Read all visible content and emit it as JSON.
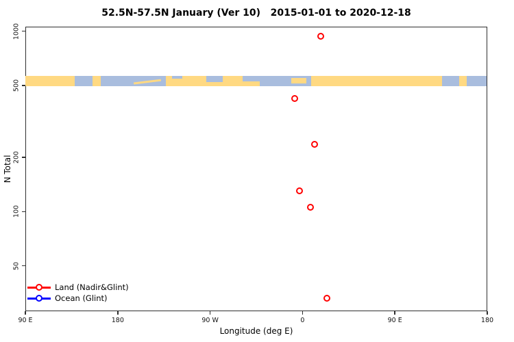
{
  "title": "52.5N-57.5N January (Ver 10)   2015-01-01 to 2020-12-18",
  "chart_data": {
    "type": "scatter",
    "title": "52.5N-57.5N January (Ver 10)   2015-01-01 to 2020-12-18",
    "xlabel": "Longitude (deg E)",
    "ylabel": "N Total",
    "x_axis": {
      "note": "longitude axis wraps 450 degrees: 90E -> 180 -> 90W -> 0 -> 90E -> 180",
      "range": [
        90,
        540
      ],
      "ticks": [
        {
          "value": 90,
          "label": "90 E"
        },
        {
          "value": 180,
          "label": "180"
        },
        {
          "value": 270,
          "label": "90 W"
        },
        {
          "value": 360,
          "label": "0"
        },
        {
          "value": 450,
          "label": "90 E"
        },
        {
          "value": 540,
          "label": "180"
        }
      ]
    },
    "y_axis": {
      "scale": "log",
      "range": [
        28,
        1060
      ],
      "grid": false,
      "ticks": [
        {
          "value": 1000,
          "label": "1000"
        },
        {
          "value": 500,
          "label": "500"
        },
        {
          "value": 200,
          "label": "200"
        },
        {
          "value": 100,
          "label": "100"
        },
        {
          "value": 50,
          "label": "50"
        }
      ]
    },
    "series": [
      {
        "name": "Land (Nadir&Glint)",
        "color": "#FF0000",
        "marker": "open-circle",
        "points": [
          {
            "x": 377.8,
            "lon_label": "18 E",
            "n": 930
          },
          {
            "x": 353.0,
            "lon_label": "7 W",
            "n": 420
          },
          {
            "x": 371.8,
            "lon_label": "12 E",
            "n": 235
          },
          {
            "x": 357.7,
            "lon_label": "2 W",
            "n": 130
          },
          {
            "x": 368.4,
            "lon_label": "8 E",
            "n": 105
          },
          {
            "x": 384.4,
            "lon_label": "24 E",
            "n": 33
          }
        ]
      },
      {
        "name": "Ocean (Glint)",
        "color": "#0000FF",
        "marker": "open-circle",
        "points": []
      }
    ],
    "map_band": {
      "description": "world coastline strip for 52.5N-57.5N drawn across the plot near N=500",
      "land_color": "#FFD982",
      "ocean_color": "#A9BDDE",
      "segments": [
        {
          "from": 90,
          "to": 138.5,
          "type": "land"
        },
        {
          "from": 138.5,
          "to": 156,
          "type": "ocean"
        },
        {
          "from": 156,
          "to": 163.5,
          "type": "land"
        },
        {
          "from": 163.5,
          "to": 227,
          "type": "ocean"
        },
        {
          "from": 227,
          "to": 302,
          "type": "land"
        },
        {
          "from": 302,
          "to": 369,
          "type": "ocean"
        },
        {
          "from": 369,
          "to": 496,
          "type": "land"
        },
        {
          "from": 496,
          "to": 513,
          "type": "ocean"
        },
        {
          "from": 513,
          "to": 520,
          "type": "land"
        },
        {
          "from": 520,
          "to": 540,
          "type": "ocean"
        }
      ],
      "patches": [
        {
          "from": 196,
          "to": 223,
          "type": "land",
          "top": 0.5,
          "height": 0.22,
          "rotate": -7
        },
        {
          "from": 233,
          "to": 243,
          "type": "ocean",
          "top": 0,
          "height": 0.3,
          "rotate": 0
        },
        {
          "from": 266.5,
          "to": 282.5,
          "type": "ocean",
          "top": 0,
          "height": 0.62,
          "rotate": 0
        },
        {
          "from": 302,
          "to": 319,
          "type": "land",
          "top": 0.55,
          "height": 0.45,
          "rotate": 0
        },
        {
          "from": 349.5,
          "to": 364,
          "type": "land",
          "top": 0.22,
          "height": 0.55,
          "rotate": 0
        }
      ]
    },
    "legend_position": "bottom-left"
  },
  "legend": {
    "items": [
      {
        "label": "Land (Nadir&Glint)",
        "color": "#FF0000"
      },
      {
        "label": "Ocean (Glint)",
        "color": "#0000FF"
      }
    ]
  }
}
